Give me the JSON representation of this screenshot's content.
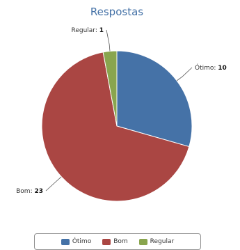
{
  "chart_data": {
    "type": "pie",
    "title": "Respostas",
    "slices": [
      {
        "name": "Ótimo",
        "value": 10,
        "color": "#4572a7"
      },
      {
        "name": "Bom",
        "value": 23,
        "color": "#aa4643"
      },
      {
        "name": "Regular",
        "value": 1,
        "color": "#89a54e"
      }
    ],
    "legend_position": "bottom"
  }
}
